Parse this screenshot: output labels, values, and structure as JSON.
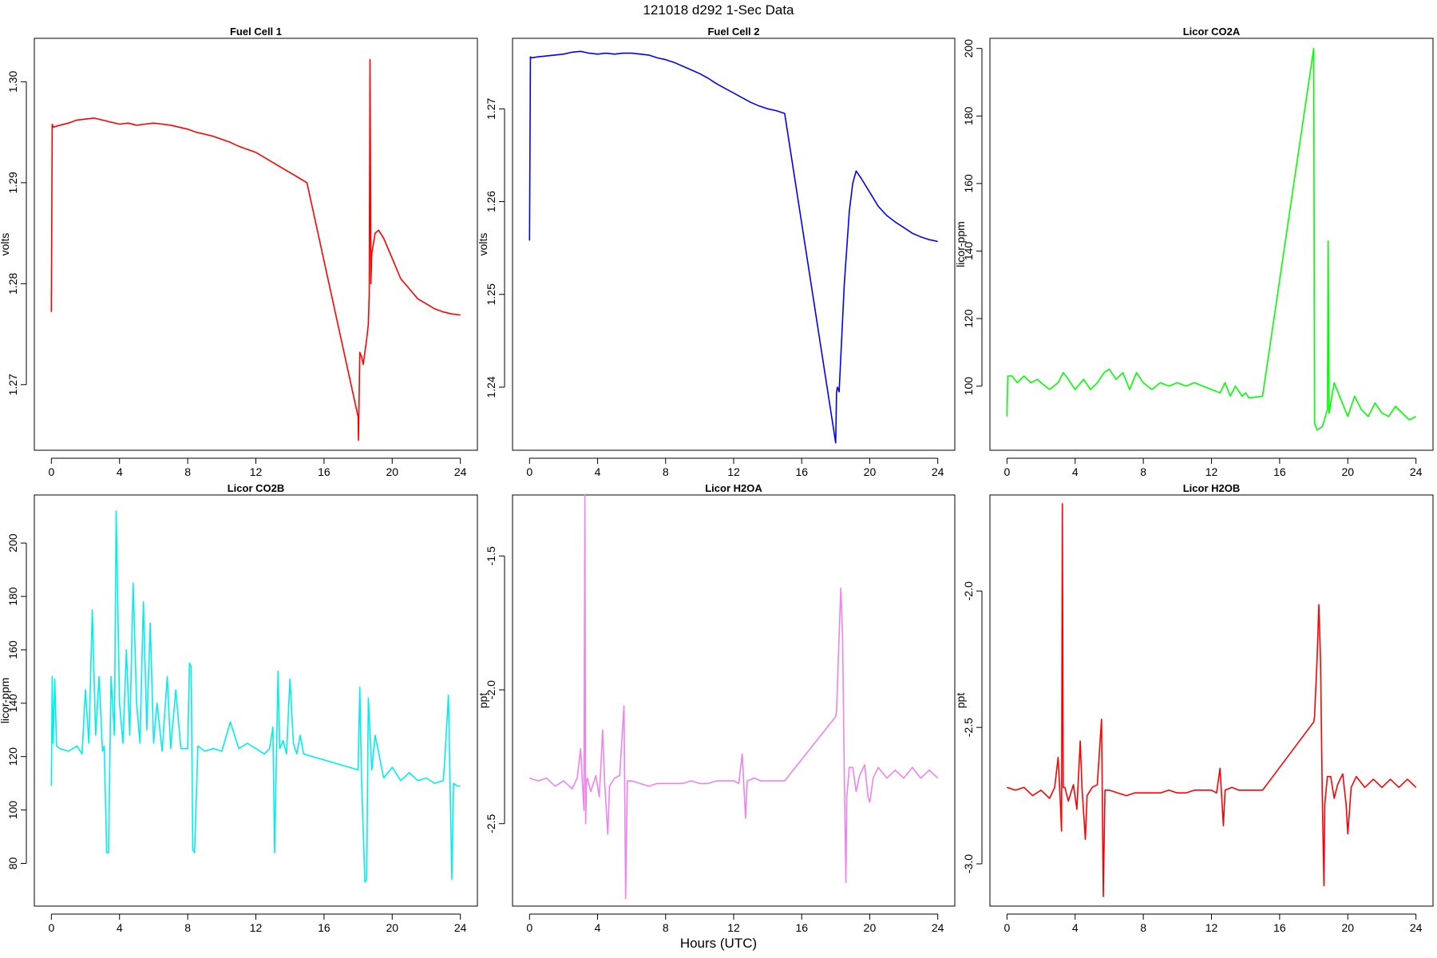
{
  "figure": {
    "title": "121018   d292   1-Sec Data",
    "xlabel": "Hours (UTC)"
  },
  "chart_data": [
    {
      "type": "line",
      "title": "Fuel Cell 1",
      "ylabel": "volts",
      "color": "#ff0000",
      "xlim": [
        -1,
        25
      ],
      "ylim": [
        1.2635,
        1.3043
      ],
      "xticks": [
        0,
        4,
        8,
        12,
        16,
        20,
        24
      ],
      "yticks": [
        1.27,
        1.28,
        1.29,
        1.3
      ],
      "ytick_labels": [
        "1.27",
        "1.28",
        "1.29",
        "1.30"
      ],
      "series": [
        {
          "x": [
            0,
            0.05,
            0.1,
            0.5,
            1,
            1.5,
            2,
            2.5,
            3,
            3.5,
            4,
            4.5,
            5,
            5.5,
            6,
            6.5,
            7,
            7.5,
            8,
            8.5,
            9,
            9.5,
            10,
            10.5,
            11,
            11.5,
            12,
            12.5,
            13,
            13.5,
            14,
            14.5,
            15,
            18,
            18.02,
            18.1,
            18.2,
            18.3,
            18.5,
            18.6,
            18.65,
            18.7,
            18.75,
            18.8,
            19,
            19.2,
            19.5,
            20,
            20.5,
            21,
            21.5,
            22,
            22.5,
            23,
            23.5,
            24
          ],
          "y": [
            1.2772,
            1.2958,
            1.2955,
            1.2957,
            1.2959,
            1.2962,
            1.2963,
            1.2964,
            1.2962,
            1.296,
            1.2958,
            1.2959,
            1.2957,
            1.2958,
            1.2959,
            1.2958,
            1.2957,
            1.2955,
            1.2953,
            1.295,
            1.2948,
            1.2946,
            1.2943,
            1.294,
            1.2936,
            1.2933,
            1.293,
            1.2925,
            1.292,
            1.2915,
            1.291,
            1.2905,
            1.29,
            1.2668,
            1.2645,
            1.2732,
            1.2728,
            1.272,
            1.2745,
            1.276,
            1.279,
            1.3022,
            1.28,
            1.283,
            1.285,
            1.2853,
            1.2845,
            1.2825,
            1.2805,
            1.2795,
            1.2785,
            1.278,
            1.2775,
            1.2772,
            1.277,
            1.2769
          ]
        }
      ]
    },
    {
      "type": "line",
      "title": "Fuel Cell 2",
      "ylabel": "volts",
      "color": "#0000ff",
      "xlim": [
        -1,
        25
      ],
      "ylim": [
        1.2332,
        1.2776
      ],
      "xticks": [
        0,
        4,
        8,
        12,
        16,
        20,
        24
      ],
      "yticks": [
        1.24,
        1.25,
        1.26,
        1.27
      ],
      "ytick_labels": [
        "1.24",
        "1.25",
        "1.26",
        "1.27"
      ],
      "series": [
        {
          "x": [
            0,
            0.05,
            0.1,
            0.5,
            1,
            1.5,
            2,
            2.5,
            3,
            3.5,
            4,
            4.5,
            5,
            5.5,
            6,
            6.5,
            7,
            7.5,
            8,
            8.5,
            9,
            9.5,
            10,
            10.5,
            11,
            11.5,
            12,
            12.5,
            13,
            13.5,
            14,
            14.5,
            15,
            18,
            18.05,
            18.1,
            18.2,
            18.5,
            18.8,
            19,
            19.2,
            19.5,
            20,
            20.5,
            21,
            21.5,
            22,
            22.5,
            23,
            23.5,
            24
          ],
          "y": [
            1.2558,
            1.2756,
            1.2755,
            1.2756,
            1.2757,
            1.2758,
            1.2759,
            1.2761,
            1.2762,
            1.276,
            1.2759,
            1.276,
            1.2759,
            1.276,
            1.276,
            1.2759,
            1.2758,
            1.2755,
            1.2753,
            1.275,
            1.2746,
            1.2742,
            1.2738,
            1.2733,
            1.2727,
            1.2722,
            1.2717,
            1.2712,
            1.2707,
            1.2703,
            1.27,
            1.2698,
            1.2695,
            1.234,
            1.2395,
            1.24,
            1.2395,
            1.251,
            1.259,
            1.262,
            1.2633,
            1.2625,
            1.261,
            1.2595,
            1.2585,
            1.2578,
            1.2572,
            1.2566,
            1.2562,
            1.2559,
            1.2557
          ]
        }
      ]
    },
    {
      "type": "line",
      "title": "Licor CO2A",
      "ylabel": "licor-ppm",
      "color": "#00ff00",
      "xlim": [
        -1,
        25
      ],
      "ylim": [
        81,
        203
      ],
      "xticks": [
        0,
        4,
        8,
        12,
        16,
        20,
        24
      ],
      "yticks": [
        100,
        120,
        140,
        160,
        180,
        200
      ],
      "ytick_labels": [
        "100",
        "120",
        "140",
        "160",
        "180",
        "200"
      ],
      "series": [
        {
          "x": [
            0,
            0.05,
            0.3,
            0.6,
            1,
            1.4,
            1.8,
            2,
            2.5,
            3,
            3.3,
            3.6,
            4,
            4.5,
            4.9,
            5.3,
            5.7,
            6,
            6.4,
            6.8,
            7.2,
            7.6,
            8,
            8.5,
            9,
            9.5,
            10,
            10.5,
            11,
            11.5,
            12,
            12.5,
            12.8,
            13.1,
            13.4,
            13.8,
            14,
            14.2,
            15,
            18,
            18.05,
            18.2,
            18.5,
            18.8,
            18.85,
            18.9,
            19.2,
            19.6,
            20,
            20.4,
            20.8,
            21.2,
            21.6,
            22,
            22.4,
            22.8,
            23.2,
            23.6,
            24
          ],
          "y": [
            91,
            103,
            103,
            101,
            103,
            101,
            102,
            101,
            99,
            101,
            104,
            102,
            99,
            102,
            99,
            101,
            104,
            105,
            102,
            104,
            99,
            104,
            101,
            99,
            101,
            100,
            101,
            100,
            101,
            100,
            99,
            98,
            101,
            97,
            100,
            97,
            98,
            96.5,
            97,
            200,
            89,
            87,
            88,
            93,
            143,
            92,
            101,
            96,
            91,
            97,
            93,
            91,
            95,
            92,
            91,
            94,
            92,
            90,
            91
          ]
        }
      ]
    },
    {
      "type": "line",
      "title": "Licor CO2B",
      "ylabel": "licor-ppm",
      "color": "#00eeee",
      "xlim": [
        -1,
        25
      ],
      "ylim": [
        64,
        218
      ],
      "xticks": [
        0,
        4,
        8,
        12,
        16,
        20,
        24
      ],
      "yticks": [
        80,
        100,
        120,
        140,
        160,
        180,
        200
      ],
      "ytick_labels": [
        "80",
        "100",
        "120",
        "140",
        "160",
        "180",
        "200"
      ],
      "series": [
        {
          "x": [
            0,
            0.05,
            0.1,
            0.2,
            0.3,
            0.5,
            1,
            1.5,
            1.8,
            2,
            2.2,
            2.4,
            2.6,
            2.8,
            3,
            3.1,
            3.25,
            3.35,
            3.5,
            3.7,
            3.8,
            4,
            4.2,
            4.4,
            4.6,
            4.8,
            5,
            5.2,
            5.4,
            5.6,
            5.8,
            6,
            6.2,
            6.5,
            6.8,
            7,
            7.3,
            7.6,
            8,
            8.1,
            8.2,
            8.3,
            8.4,
            8.6,
            9,
            9.5,
            10,
            10.5,
            11,
            11.5,
            12,
            12.5,
            12.8,
            13,
            13.1,
            13.3,
            13.4,
            13.6,
            13.8,
            14,
            14.2,
            14.4,
            14.6,
            14.8,
            18,
            18.1,
            18.2,
            18.4,
            18.5,
            18.6,
            18.8,
            19,
            19.5,
            20,
            20.5,
            21,
            21.5,
            22,
            22.5,
            23,
            23.1,
            23.3,
            23.5,
            23.6,
            23.8,
            24
          ],
          "y": [
            109,
            150,
            125,
            149,
            124,
            123,
            122,
            124,
            121,
            145,
            125,
            175,
            128,
            150,
            122,
            124,
            84,
            84,
            150,
            128,
            212,
            140,
            125,
            160,
            128,
            185,
            140,
            125,
            178,
            130,
            170,
            125,
            140,
            122,
            150,
            123,
            145,
            123,
            123,
            155,
            154,
            85,
            84,
            124,
            122,
            123,
            122,
            133,
            123,
            125,
            123,
            121,
            123,
            131,
            84,
            152,
            123,
            126,
            121,
            149,
            125,
            121,
            128,
            121,
            115,
            146,
            112,
            73,
            74,
            142,
            115,
            128,
            112,
            116,
            111,
            114,
            111,
            112,
            110,
            111,
            120,
            143,
            74,
            110,
            109,
            109
          ]
        }
      ]
    },
    {
      "type": "line",
      "title": "Licor H2OA",
      "ylabel": "ppt",
      "color": "#ee82ee",
      "xlim": [
        -1,
        25
      ],
      "ylim": [
        -2.808,
        -1.272
      ],
      "xticks": [
        0,
        4,
        8,
        12,
        16,
        20,
        24
      ],
      "yticks": [
        -2.5,
        -2.0,
        -1.5
      ],
      "ytick_labels": [
        "-2.5",
        "-2.0",
        "-1.5"
      ],
      "series": [
        {
          "x": [
            0,
            0.5,
            1,
            1.5,
            2,
            2.5,
            2.8,
            3,
            3.1,
            3.2,
            3.25,
            3.3,
            3.35,
            3.4,
            3.6,
            3.9,
            4.1,
            4.3,
            4.4,
            4.6,
            4.7,
            5,
            5.3,
            5.55,
            5.65,
            5.75,
            6,
            6.5,
            7,
            7.5,
            8,
            8.5,
            9,
            9.5,
            10,
            10.5,
            11,
            11.5,
            12,
            12.3,
            12.5,
            12.7,
            12.8,
            13.2,
            13.6,
            14,
            15,
            18,
            18.05,
            18.2,
            18.3,
            18.4,
            18.5,
            18.6,
            18.65,
            18.8,
            19,
            19.2,
            19.4,
            19.7,
            19.9,
            20,
            20.2,
            20.5,
            21,
            21.5,
            22,
            22.5,
            23,
            23.5,
            24
          ],
          "y": [
            -2.33,
            -2.34,
            -2.33,
            -2.36,
            -2.34,
            -2.37,
            -2.33,
            -2.22,
            -2.34,
            -2.45,
            -1.27,
            -2.5,
            -2.34,
            -2.33,
            -2.38,
            -2.32,
            -2.4,
            -2.15,
            -2.33,
            -2.54,
            -2.36,
            -2.33,
            -2.32,
            -2.06,
            -2.78,
            -2.34,
            -2.34,
            -2.35,
            -2.36,
            -2.35,
            -2.35,
            -2.35,
            -2.35,
            -2.34,
            -2.35,
            -2.35,
            -2.34,
            -2.34,
            -2.34,
            -2.35,
            -2.24,
            -2.48,
            -2.34,
            -2.33,
            -2.34,
            -2.34,
            -2.34,
            -2.1,
            -2.08,
            -1.8,
            -1.62,
            -1.8,
            -2.3,
            -2.72,
            -2.4,
            -2.29,
            -2.29,
            -2.38,
            -2.32,
            -2.28,
            -2.4,
            -2.42,
            -2.33,
            -2.29,
            -2.33,
            -2.3,
            -2.33,
            -2.29,
            -2.33,
            -2.3,
            -2.33
          ]
        }
      ]
    },
    {
      "type": "line",
      "title": "Licor H2OB",
      "ylabel": "ppt",
      "color": "#ff0000",
      "xlim": [
        -1,
        25
      ],
      "ylim": [
        -3.155,
        -1.648
      ],
      "xticks": [
        0,
        4,
        8,
        12,
        16,
        20,
        24
      ],
      "yticks": [
        -3.0,
        -2.5,
        -2.0
      ],
      "ytick_labels": [
        "-3.0",
        "-2.5",
        "-2.0"
      ],
      "series": [
        {
          "x": [
            0,
            0.5,
            1,
            1.5,
            2,
            2.5,
            2.8,
            3,
            3.1,
            3.2,
            3.25,
            3.3,
            3.35,
            3.4,
            3.6,
            3.9,
            4.1,
            4.3,
            4.4,
            4.6,
            4.7,
            5,
            5.3,
            5.55,
            5.65,
            5.75,
            6,
            6.5,
            7,
            7.5,
            8,
            8.5,
            9,
            9.5,
            10,
            10.5,
            11,
            11.5,
            12,
            12.3,
            12.5,
            12.7,
            12.8,
            13.2,
            13.6,
            14,
            15,
            18,
            18.05,
            18.2,
            18.3,
            18.4,
            18.5,
            18.6,
            18.65,
            18.8,
            19,
            19.2,
            19.4,
            19.7,
            19.9,
            20,
            20.2,
            20.5,
            21,
            21.5,
            22,
            22.5,
            23,
            23.5,
            24
          ],
          "y": [
            -2.72,
            -2.73,
            -2.72,
            -2.75,
            -2.73,
            -2.76,
            -2.72,
            -2.61,
            -2.73,
            -2.88,
            -1.68,
            -2.72,
            -2.72,
            -2.72,
            -2.77,
            -2.71,
            -2.8,
            -2.55,
            -2.72,
            -2.91,
            -2.75,
            -2.72,
            -2.71,
            -2.47,
            -3.12,
            -2.73,
            -2.73,
            -2.74,
            -2.75,
            -2.74,
            -2.74,
            -2.74,
            -2.74,
            -2.73,
            -2.74,
            -2.74,
            -2.73,
            -2.73,
            -2.73,
            -2.74,
            -2.65,
            -2.86,
            -2.73,
            -2.72,
            -2.73,
            -2.73,
            -2.73,
            -2.48,
            -2.46,
            -2.25,
            -2.05,
            -2.25,
            -2.75,
            -3.08,
            -2.78,
            -2.68,
            -2.68,
            -2.76,
            -2.71,
            -2.67,
            -2.78,
            -2.89,
            -2.72,
            -2.68,
            -2.72,
            -2.69,
            -2.72,
            -2.69,
            -2.72,
            -2.69,
            -2.72
          ]
        }
      ]
    }
  ]
}
